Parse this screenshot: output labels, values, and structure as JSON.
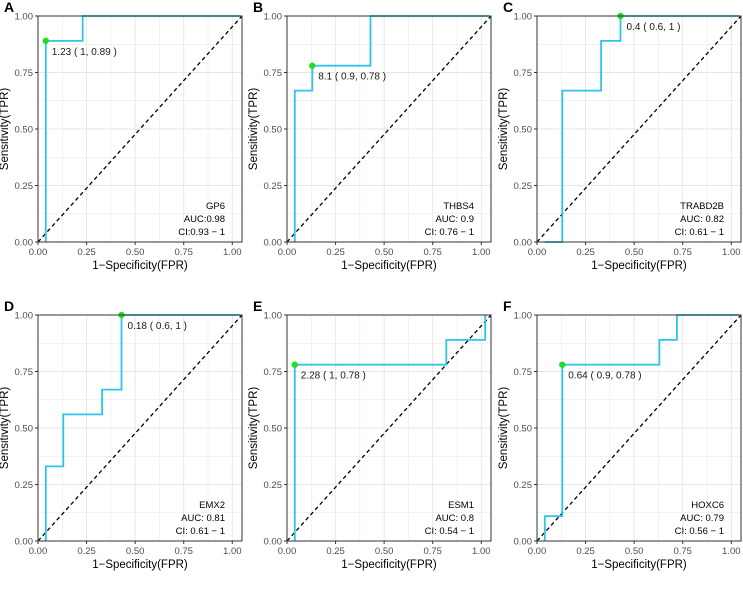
{
  "chart_data": [
    {
      "type": "line",
      "panel_label": "A",
      "xlabel": "1−Specificity(FPR)",
      "ylabel": "Sensitivity(TPR)",
      "xlim": [
        0,
        1.05
      ],
      "ylim": [
        0,
        1
      ],
      "x_ticks": [
        "0.00",
        "0.25",
        "0.50",
        "0.75",
        "1.00"
      ],
      "y_ticks": [
        "0.00",
        "0.25",
        "0.50",
        "0.75",
        "1.00"
      ],
      "grid": true,
      "reference_line": "diagonal dashed",
      "gene": "GP6",
      "auc": "AUC:0.98",
      "ci": "CI:0.93 − 1",
      "roc": [
        [
          0.04,
          0
        ],
        [
          0.04,
          0.89
        ],
        [
          0.23,
          0.89
        ],
        [
          0.23,
          1.0
        ],
        [
          1.04,
          1.0
        ]
      ],
      "threshold_point": [
        0.04,
        0.89
      ],
      "threshold_label": "1.23 ( 1, 0.89 )"
    },
    {
      "type": "line",
      "panel_label": "B",
      "xlabel": "1−Specificity(FPR)",
      "ylabel": "Sensitivity(TPR)",
      "xlim": [
        0,
        1.05
      ],
      "ylim": [
        0,
        1
      ],
      "x_ticks": [
        "0.00",
        "0.25",
        "0.50",
        "0.75",
        "1.00"
      ],
      "y_ticks": [
        "0.00",
        "0.25",
        "0.50",
        "0.75",
        "1.00"
      ],
      "grid": true,
      "reference_line": "diagonal dashed",
      "gene": "THBS4",
      "auc": "AUC: 0.9",
      "ci": "CI: 0.76 − 1",
      "roc": [
        [
          0.04,
          0
        ],
        [
          0.04,
          0.67
        ],
        [
          0.13,
          0.67
        ],
        [
          0.13,
          0.78
        ],
        [
          0.43,
          0.78
        ],
        [
          0.43,
          1.0
        ],
        [
          1.04,
          1.0
        ]
      ],
      "threshold_point": [
        0.13,
        0.78
      ],
      "threshold_label": "8.1 ( 0.9, 0.78 )"
    },
    {
      "type": "line",
      "panel_label": "C",
      "xlabel": "1−Specificity(FPR)",
      "ylabel": "Sensitivity(TPR)",
      "xlim": [
        0,
        1.05
      ],
      "ylim": [
        0,
        1
      ],
      "x_ticks": [
        "0.00",
        "0.25",
        "0.50",
        "0.75",
        "1.00"
      ],
      "y_ticks": [
        "0.00",
        "0.25",
        "0.50",
        "0.75",
        "1.00"
      ],
      "grid": true,
      "reference_line": "diagonal dashed",
      "gene": "TRABD2B",
      "auc": "AUC: 0.82",
      "ci": "CI: 0.61 − 1",
      "roc": [
        [
          0.04,
          0
        ],
        [
          0.13,
          0
        ],
        [
          0.13,
          0.67
        ],
        [
          0.33,
          0.67
        ],
        [
          0.33,
          0.89
        ],
        [
          0.43,
          0.89
        ],
        [
          0.43,
          1.0
        ],
        [
          1.04,
          1.0
        ]
      ],
      "threshold_point": [
        0.43,
        1.0
      ],
      "threshold_label": "0.4 ( 0.6, 1 )"
    },
    {
      "type": "line",
      "panel_label": "D",
      "xlabel": "1−Specificity(FPR)",
      "ylabel": "Sensitivity(TPR)",
      "xlim": [
        0,
        1.05
      ],
      "ylim": [
        0,
        1
      ],
      "x_ticks": [
        "0.00",
        "0.25",
        "0.50",
        "0.75",
        "1.00"
      ],
      "y_ticks": [
        "0.00",
        "0.25",
        "0.50",
        "0.75",
        "1.00"
      ],
      "grid": true,
      "reference_line": "diagonal dashed",
      "gene": "EMX2",
      "auc": "AUC: 0.81",
      "ci": "CI: 0.61 − 1",
      "roc": [
        [
          0.04,
          0
        ],
        [
          0.04,
          0.33
        ],
        [
          0.13,
          0.33
        ],
        [
          0.13,
          0.56
        ],
        [
          0.33,
          0.56
        ],
        [
          0.33,
          0.67
        ],
        [
          0.43,
          0.67
        ],
        [
          0.43,
          1.0
        ],
        [
          1.04,
          1.0
        ]
      ],
      "threshold_point": [
        0.43,
        1.0
      ],
      "threshold_label": "0.18 ( 0.6, 1 )"
    },
    {
      "type": "line",
      "panel_label": "E",
      "xlabel": "1−Specificity(FPR)",
      "ylabel": "Sensitivity(TPR)",
      "xlim": [
        0,
        1.05
      ],
      "ylim": [
        0,
        1
      ],
      "x_ticks": [
        "0.00",
        "0.25",
        "0.50",
        "0.75",
        "1.00"
      ],
      "y_ticks": [
        "0.00",
        "0.25",
        "0.50",
        "0.75",
        "1.00"
      ],
      "grid": true,
      "reference_line": "diagonal dashed",
      "gene": "ESM1",
      "auc": "AUC: 0.8",
      "ci": "CI: 0.54 − 1",
      "roc": [
        [
          0.04,
          0
        ],
        [
          0.04,
          0.78
        ],
        [
          0.82,
          0.78
        ],
        [
          0.82,
          0.89
        ],
        [
          1.02,
          0.89
        ],
        [
          1.02,
          1.0
        ]
      ],
      "threshold_point": [
        0.04,
        0.78
      ],
      "threshold_label": "2.28 ( 1, 0.78 )"
    },
    {
      "type": "line",
      "panel_label": "F",
      "xlabel": "1−Specificity(FPR)",
      "ylabel": "Sensitivity(TPR)",
      "xlim": [
        0,
        1.05
      ],
      "ylim": [
        0,
        1
      ],
      "x_ticks": [
        "0.00",
        "0.25",
        "0.50",
        "0.75",
        "1.00"
      ],
      "y_ticks": [
        "0.00",
        "0.25",
        "0.50",
        "0.75",
        "1.00"
      ],
      "grid": true,
      "reference_line": "diagonal dashed",
      "gene": "HOXC6",
      "auc": "AUC: 0.79",
      "ci": "CI: 0.56 − 1",
      "roc": [
        [
          0.04,
          0
        ],
        [
          0.04,
          0.11
        ],
        [
          0.13,
          0.11
        ],
        [
          0.13,
          0.78
        ],
        [
          0.63,
          0.78
        ],
        [
          0.63,
          0.89
        ],
        [
          0.72,
          0.89
        ],
        [
          0.72,
          1.0
        ],
        [
          1.04,
          1.0
        ]
      ],
      "threshold_point": [
        0.13,
        0.78
      ],
      "threshold_label": "0.64 ( 0.9, 0.78 )"
    }
  ],
  "colors": {
    "roc_line": "#2ec5e8",
    "threshold_point": "#22dd22",
    "reference_line": "#000000",
    "grid": "#e6e6e6",
    "panel_border": "#333333"
  }
}
